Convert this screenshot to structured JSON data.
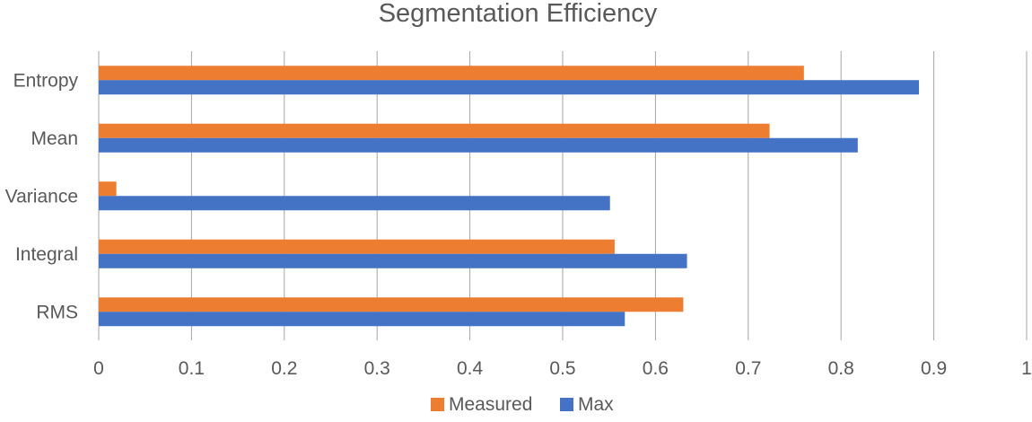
{
  "chart_data": {
    "type": "bar",
    "orientation": "horizontal",
    "title": "Segmentation Efficiency",
    "xlabel": "",
    "ylabel": "",
    "categories": [
      "Entropy",
      "Mean",
      "Variance",
      "Integral",
      "RMS"
    ],
    "series": [
      {
        "name": "Measured",
        "color": "#ED7D31",
        "values": [
          0.76,
          0.723,
          0.019,
          0.556,
          0.63
        ]
      },
      {
        "name": "Max",
        "color": "#4472C4",
        "values": [
          0.884,
          0.818,
          0.551,
          0.634,
          0.567
        ]
      }
    ],
    "xlim": [
      0,
      1
    ],
    "x_ticks": [
      "0",
      "0.1",
      "0.2",
      "0.3",
      "0.4",
      "0.5",
      "0.6",
      "0.7",
      "0.8",
      "0.9",
      "1"
    ],
    "grid": true,
    "legend_position": "bottom"
  },
  "colors": {
    "gridline": "#A6A6A6",
    "text": "#595959"
  }
}
